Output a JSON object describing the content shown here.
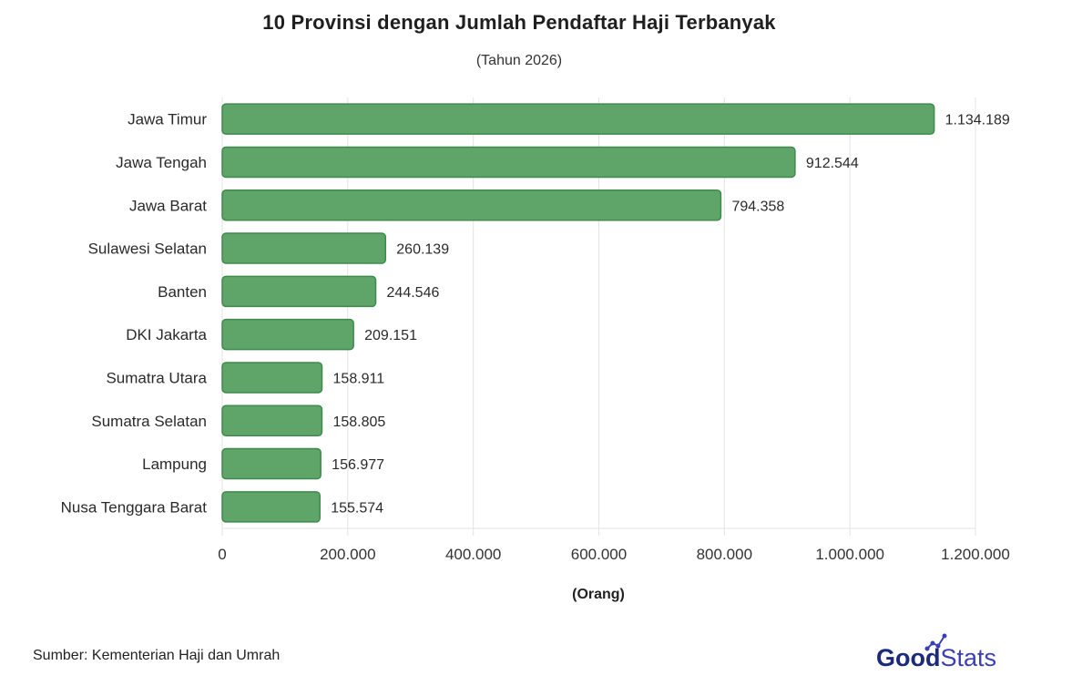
{
  "chart_data": {
    "type": "bar",
    "orientation": "horizontal",
    "title": "10 Provinsi dengan Jumlah Pendaftar Haji Terbanyak",
    "subtitle": "(Tahun 2026)",
    "xlabel": "(Orang)",
    "ylabel": "",
    "categories": [
      "Jawa Timur",
      "Jawa Tengah",
      "Jawa Barat",
      "Sulawesi Selatan",
      "Banten",
      "DKI Jakarta",
      "Sumatra Utara",
      "Sumatra Selatan",
      "Lampung",
      "Nusa Tenggara Barat"
    ],
    "values": [
      1134189,
      912544,
      794358,
      260139,
      244546,
      209151,
      158911,
      158805,
      156977,
      155574
    ],
    "value_labels": [
      "1.134.189",
      "912.544",
      "794.358",
      "260.139",
      "244.546",
      "209.151",
      "158.911",
      "158.805",
      "156.977",
      "155.574"
    ],
    "xlim": [
      0,
      1200000
    ],
    "xticks": [
      0,
      200000,
      400000,
      600000,
      800000,
      1000000,
      1200000
    ],
    "xtick_labels": [
      "0",
      "200.000",
      "400.000",
      "600.000",
      "800.000",
      "1.000.000",
      "1.200.000"
    ],
    "grid": "vertical",
    "bar_color": "#5fa56a",
    "bar_edge_color": "#3f8a4c"
  },
  "source": "Sumber: Kementerian Haji dan Umrah",
  "logo": {
    "text_good": "Good",
    "text_stats": "Stats",
    "color_good": "#1b2a7a",
    "color_stats": "#3b3fb5"
  }
}
